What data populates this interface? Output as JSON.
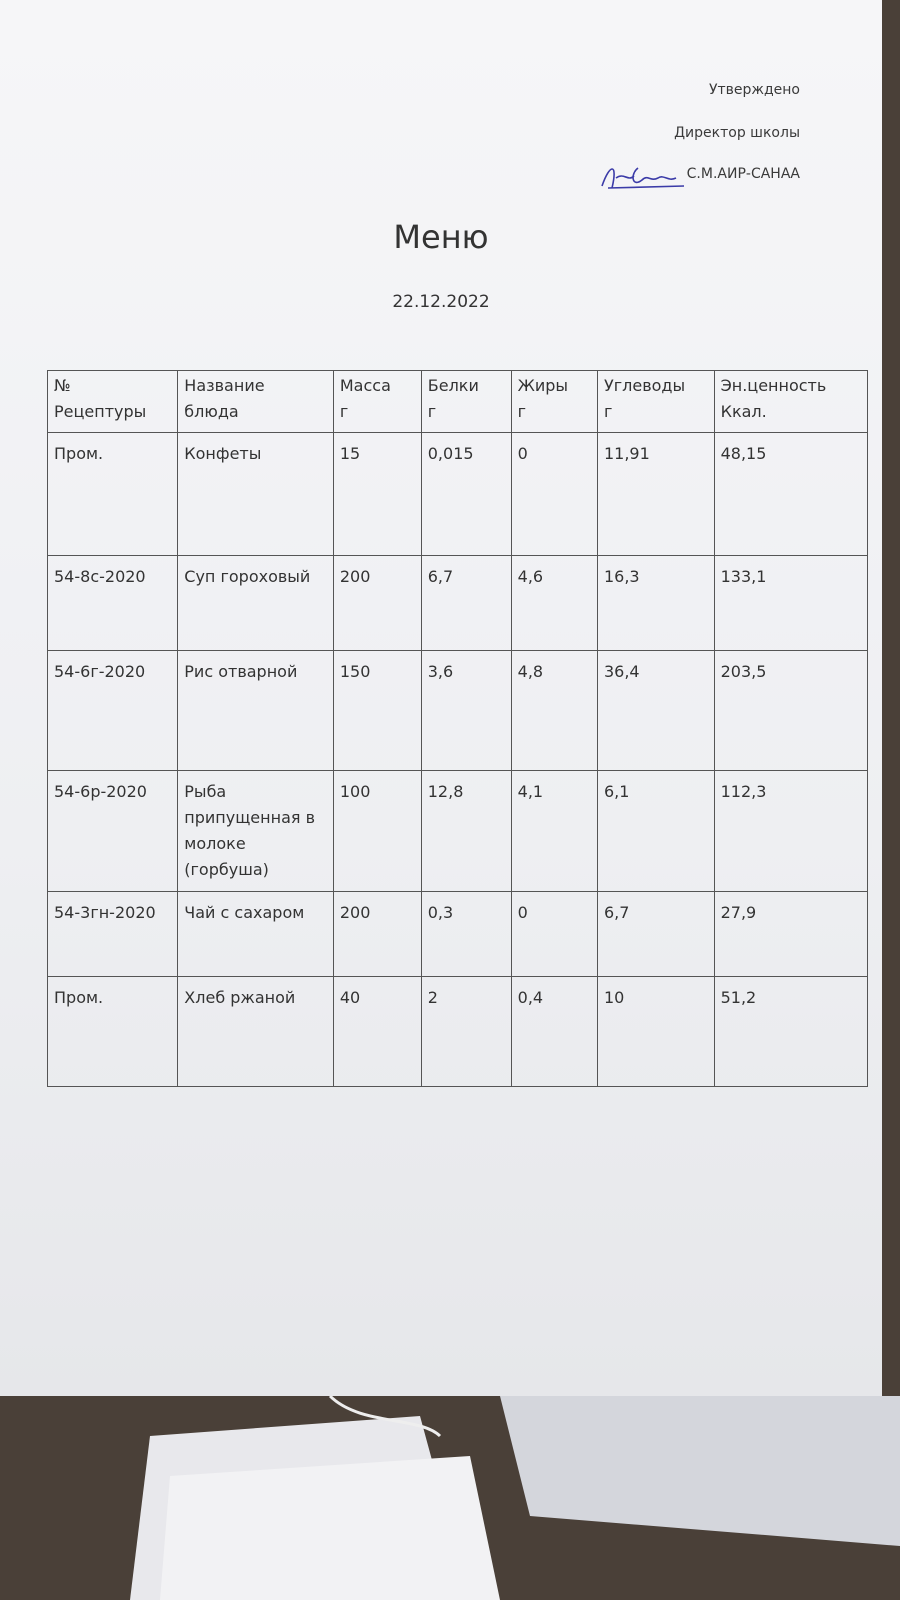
{
  "header": {
    "approved": "Утверждено",
    "position": "Директор школы",
    "name": "С.М.АИР-САНАА"
  },
  "title": "Меню",
  "date": "22.12.2022",
  "table": {
    "columns": [
      [
        "№",
        "Рецептуры"
      ],
      [
        "Название",
        "блюда"
      ],
      [
        "Масса",
        "г"
      ],
      [
        "Белки",
        "г"
      ],
      [
        "Жиры",
        "г"
      ],
      [
        "Углеводы",
        "г"
      ],
      [
        "Эн.ценность",
        "Ккал."
      ]
    ],
    "rows": [
      [
        "Пром.",
        "Конфеты",
        "15",
        "0,015",
        "0",
        "11,91",
        "48,15"
      ],
      [
        "54-8с-2020",
        "Суп гороховый",
        "200",
        "6,7",
        "4,6",
        "16,3",
        "133,1"
      ],
      [
        "54-6г-2020",
        "Рис отварной",
        "150",
        "3,6",
        "4,8",
        "36,4",
        "203,5"
      ],
      [
        "54-6р-2020",
        "Рыба припущенная в молоке (горбуша)",
        "100",
        "12,8",
        "4,1",
        "6,1",
        "112,3"
      ],
      [
        "54-3гн-2020",
        "Чай с сахаром",
        "200",
        "0,3",
        "0",
        "6,7",
        "27,9"
      ],
      [
        "Пром.",
        "Хлеб ржаной",
        "40",
        "2",
        "0,4",
        "10",
        "51,2"
      ]
    ]
  }
}
